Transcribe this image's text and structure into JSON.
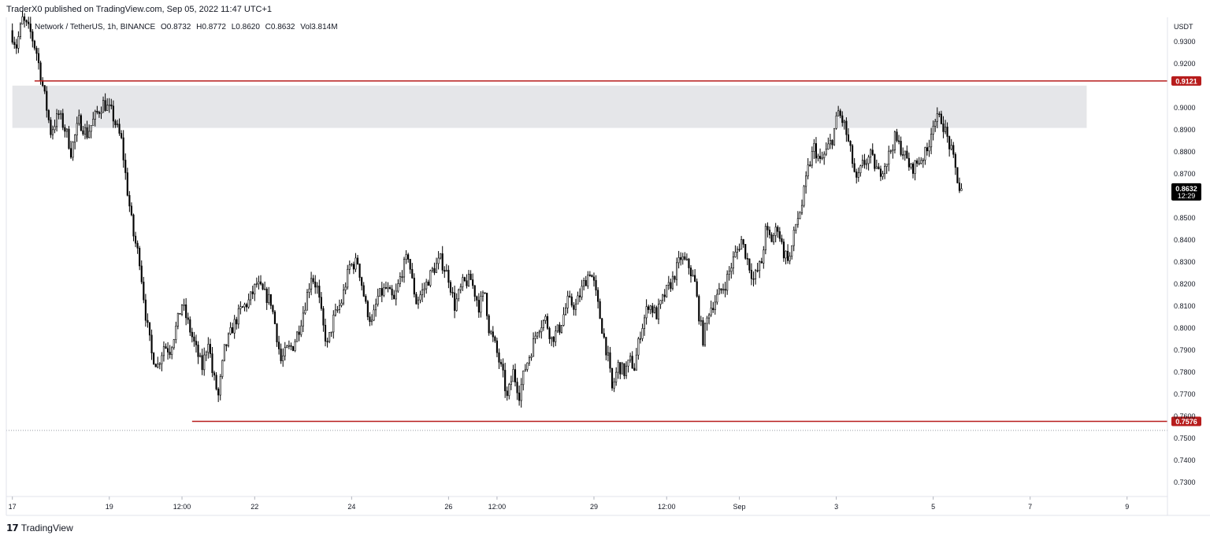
{
  "header": {
    "published": "TraderX0 published on TradingView.com, Sep 05, 2022 11:47 UTC+1"
  },
  "legend": {
    "symbol": "Network / TetherUS, 1h, BINANCE",
    "open": "O0.8732",
    "high": "H0.8772",
    "low": "L0.8620",
    "close": "C0.8632",
    "volume": "Vol3.814M"
  },
  "footer": {
    "brand": "TradingView",
    "logo_icon": "tradingview-logo-icon"
  },
  "colors": {
    "candle": "#000000",
    "level_line": "#b71c1c",
    "zone_fill": "#e5e6e9",
    "last_price_bg": "#000000",
    "grid": "#e0e3eb"
  },
  "chart_data": {
    "type": "candlestick",
    "y_axis_label": "USDT",
    "ylim": [
      0.7235,
      0.941
    ],
    "y_ticks": [
      "0.9300",
      "0.9200",
      "0.9000",
      "0.8900",
      "0.8800",
      "0.8700",
      "0.8500",
      "0.8400",
      "0.8300",
      "0.8200",
      "0.8100",
      "0.8000",
      "0.7900",
      "0.7800",
      "0.7700",
      "0.7600",
      "0.7500",
      "0.7400",
      "0.7300"
    ],
    "x_ticks": [
      "17",
      "19",
      "12:00",
      "22",
      "24",
      "26",
      "12:00",
      "29",
      "12:00",
      "Sep",
      "3",
      "5",
      "7",
      "9"
    ],
    "x_tick_hours": [
      0,
      48,
      84,
      120,
      168,
      216,
      240,
      288,
      324,
      360,
      408,
      456,
      504,
      552
    ],
    "horizontal_levels": [
      {
        "price": 0.9121,
        "label": "0.9121",
        "start_hour": 11
      },
      {
        "price": 0.7576,
        "label": "0.7576",
        "start_hour": 89
      }
    ],
    "zone": {
      "top": 0.91,
      "bottom": 0.8908,
      "start_hour": 0,
      "end_hour": 532
    },
    "last_price": {
      "price": 0.8632,
      "label": "0.8632",
      "countdown": "12:29"
    },
    "dotted_level": 0.7535,
    "x_range_hours": [
      -3,
      572
    ],
    "path": [
      [
        0,
        0.935
      ],
      [
        3,
        0.928
      ],
      [
        6,
        0.94
      ],
      [
        10,
        0.934
      ],
      [
        13,
        0.925
      ],
      [
        17,
        0.905
      ],
      [
        20,
        0.889
      ],
      [
        24,
        0.897
      ],
      [
        28,
        0.888
      ],
      [
        30,
        0.88
      ],
      [
        34,
        0.894
      ],
      [
        38,
        0.888
      ],
      [
        42,
        0.896
      ],
      [
        46,
        0.902
      ],
      [
        50,
        0.898
      ],
      [
        55,
        0.885
      ],
      [
        58,
        0.862
      ],
      [
        61,
        0.842
      ],
      [
        64,
        0.831
      ],
      [
        67,
        0.806
      ],
      [
        70,
        0.788
      ],
      [
        73,
        0.783
      ],
      [
        76,
        0.792
      ],
      [
        79,
        0.79
      ],
      [
        82,
        0.8
      ],
      [
        85,
        0.811
      ],
      [
        88,
        0.802
      ],
      [
        92,
        0.79
      ],
      [
        95,
        0.782
      ],
      [
        98,
        0.795
      ],
      [
        100,
        0.78
      ],
      [
        103,
        0.769
      ],
      [
        106,
        0.79
      ],
      [
        110,
        0.8
      ],
      [
        114,
        0.808
      ],
      [
        118,
        0.812
      ],
      [
        122,
        0.82
      ],
      [
        126,
        0.815
      ],
      [
        129,
        0.812
      ],
      [
        131,
        0.802
      ],
      [
        134,
        0.785
      ],
      [
        137,
        0.79
      ],
      [
        140,
        0.792
      ],
      [
        143,
        0.8
      ],
      [
        146,
        0.811
      ],
      [
        149,
        0.824
      ],
      [
        152,
        0.818
      ],
      [
        155,
        0.8
      ],
      [
        157,
        0.792
      ],
      [
        160,
        0.804
      ],
      [
        164,
        0.812
      ],
      [
        168,
        0.828
      ],
      [
        172,
        0.83
      ],
      [
        176,
        0.81
      ],
      [
        179,
        0.802
      ],
      [
        182,
        0.814
      ],
      [
        186,
        0.818
      ],
      [
        190,
        0.812
      ],
      [
        194,
        0.826
      ],
      [
        197,
        0.833
      ],
      [
        199,
        0.821
      ],
      [
        201,
        0.812
      ],
      [
        205,
        0.818
      ],
      [
        209,
        0.826
      ],
      [
        213,
        0.831
      ],
      [
        217,
        0.823
      ],
      [
        220,
        0.81
      ],
      [
        224,
        0.82
      ],
      [
        228,
        0.822
      ],
      [
        232,
        0.81
      ],
      [
        235,
        0.816
      ],
      [
        237,
        0.8
      ],
      [
        240,
        0.792
      ],
      [
        242,
        0.785
      ],
      [
        244,
        0.778
      ],
      [
        246,
        0.768
      ],
      [
        249,
        0.78
      ],
      [
        252,
        0.77
      ],
      [
        255,
        0.782
      ],
      [
        258,
        0.79
      ],
      [
        261,
        0.8
      ],
      [
        265,
        0.804
      ],
      [
        268,
        0.795
      ],
      [
        272,
        0.8
      ],
      [
        276,
        0.812
      ],
      [
        280,
        0.81
      ],
      [
        284,
        0.82
      ],
      [
        287,
        0.826
      ],
      [
        289,
        0.82
      ],
      [
        291,
        0.81
      ],
      [
        293,
        0.8
      ],
      [
        296,
        0.786
      ],
      [
        298,
        0.772
      ],
      [
        301,
        0.783
      ],
      [
        304,
        0.78
      ],
      [
        307,
        0.785
      ],
      [
        309,
        0.782
      ],
      [
        312,
        0.798
      ],
      [
        316,
        0.811
      ],
      [
        320,
        0.806
      ],
      [
        324,
        0.815
      ],
      [
        328,
        0.822
      ],
      [
        332,
        0.832
      ],
      [
        336,
        0.828
      ],
      [
        339,
        0.82
      ],
      [
        341,
        0.806
      ],
      [
        343,
        0.795
      ],
      [
        346,
        0.808
      ],
      [
        350,
        0.814
      ],
      [
        354,
        0.82
      ],
      [
        358,
        0.831
      ],
      [
        362,
        0.84
      ],
      [
        366,
        0.828
      ],
      [
        368,
        0.822
      ],
      [
        372,
        0.83
      ],
      [
        374,
        0.844
      ],
      [
        377,
        0.84
      ],
      [
        380,
        0.846
      ],
      [
        383,
        0.834
      ],
      [
        386,
        0.832
      ],
      [
        389,
        0.847
      ],
      [
        392,
        0.856
      ],
      [
        395,
        0.872
      ],
      [
        398,
        0.882
      ],
      [
        401,
        0.875
      ],
      [
        404,
        0.88
      ],
      [
        407,
        0.886
      ],
      [
        410,
        0.898
      ],
      [
        413,
        0.892
      ],
      [
        416,
        0.88
      ],
      [
        419,
        0.866
      ],
      [
        422,
        0.874
      ],
      [
        426,
        0.878
      ],
      [
        430,
        0.87
      ],
      [
        434,
        0.876
      ],
      [
        438,
        0.886
      ],
      [
        442,
        0.88
      ],
      [
        446,
        0.872
      ],
      [
        450,
        0.876
      ],
      [
        454,
        0.88
      ],
      [
        457,
        0.894
      ],
      [
        461,
        0.895
      ],
      [
        464,
        0.886
      ],
      [
        466,
        0.88
      ],
      [
        468,
        0.872
      ],
      [
        470,
        0.863
      ]
    ]
  }
}
